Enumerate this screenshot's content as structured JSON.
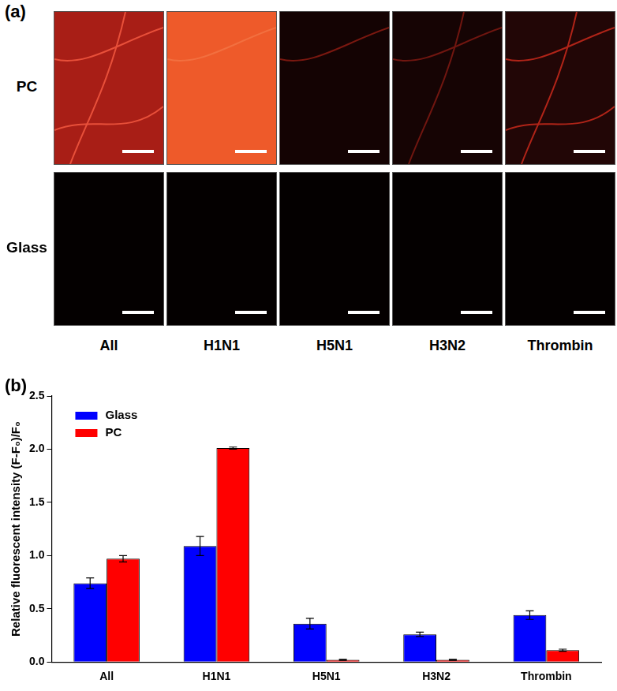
{
  "panel_labels": [
    "(a)",
    "(b)"
  ],
  "panel_a": {
    "row_labels": [
      "PC",
      "Glass"
    ],
    "column_labels": [
      "All",
      "H1N1",
      "H5N1",
      "H3N2",
      "Thrombin"
    ]
  },
  "chart_data": {
    "type": "bar",
    "ylabel": "Relative fluorescent intensity (F-F₀)/F₀",
    "categories": [
      "All",
      "H1N1",
      "H5N1",
      "H3N2",
      "Thrombin"
    ],
    "series": [
      {
        "name": "Glass",
        "color": "#0000ff",
        "values": [
          0.74,
          1.09,
          0.36,
          0.26,
          0.44
        ],
        "errors": [
          0.05,
          0.09,
          0.05,
          0.02,
          0.04
        ]
      },
      {
        "name": "PC",
        "color": "#ff0000",
        "values": [
          0.97,
          2.01,
          0.02,
          0.02,
          0.11
        ],
        "errors": [
          0.03,
          0.01,
          0.005,
          0.005,
          0.01
        ]
      }
    ],
    "ylim": [
      0,
      2.5
    ],
    "yticks": [
      {
        "value": 0,
        "label": "0.0"
      },
      0.5,
      {
        "value": 1,
        "label": "1.0"
      },
      1.5,
      {
        "value": 2,
        "label": "2.0"
      },
      2.5
    ],
    "grid": false,
    "legend": "upper left"
  }
}
